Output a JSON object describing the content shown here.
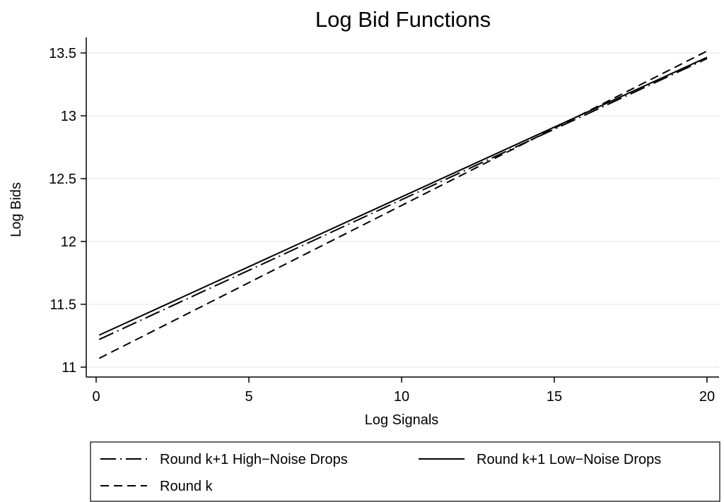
{
  "chart_data": {
    "type": "line",
    "title": "Log Bid Functions",
    "xlabel": "Log Signals",
    "ylabel": "Log Bids",
    "xlim": [
      0,
      20
    ],
    "ylim": [
      11,
      13.5
    ],
    "xticks": [
      0,
      5,
      10,
      15,
      20
    ],
    "yticks": [
      11,
      11.5,
      12,
      12.5,
      13,
      13.5
    ],
    "xtick_labels": [
      "0",
      "5",
      "10",
      "15",
      "20"
    ],
    "ytick_labels": [
      "11",
      "11.5",
      "12",
      "12.5",
      "13",
      "13.5"
    ],
    "grid": "horizontal",
    "legend_position": "bottom",
    "series": [
      {
        "name": "Round k+1 High−Noise Drops",
        "style": "dash-dot",
        "x": [
          0.1,
          20
        ],
        "y": [
          11.22,
          13.455
        ]
      },
      {
        "name": "Round k+1 Low−Noise Drops",
        "style": "solid",
        "x": [
          0.1,
          20
        ],
        "y": [
          11.255,
          13.465
        ]
      },
      {
        "name": "Round k",
        "style": "dashed",
        "x": [
          0.1,
          20
        ],
        "y": [
          11.07,
          13.515
        ]
      }
    ]
  }
}
